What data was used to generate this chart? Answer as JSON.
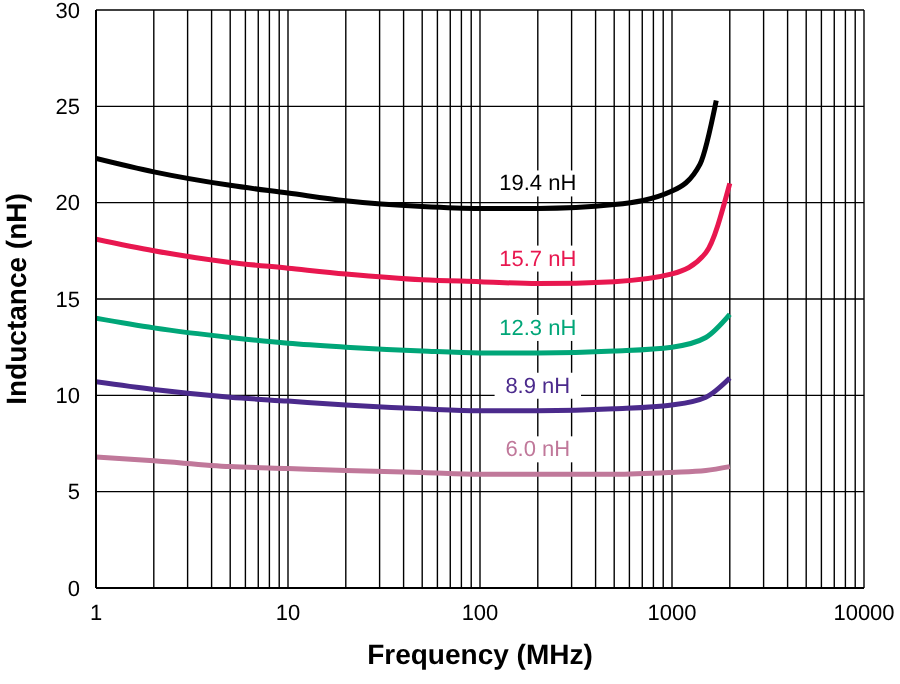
{
  "chart_data": {
    "type": "line",
    "xlabel": "Frequency (MHz)",
    "ylabel": "Inductance (nH)",
    "log": "x",
    "grid": true,
    "legend": false,
    "marker": "none",
    "line_style": "solid",
    "xlim": [
      1,
      10000
    ],
    "xticks": [
      1,
      {
        "value": 2,
        "label": null
      },
      {
        "value": 3,
        "label": null
      },
      {
        "value": 4,
        "label": null
      },
      {
        "value": 5,
        "label": null
      },
      {
        "value": 6,
        "label": null
      },
      {
        "value": 7,
        "label": null
      },
      {
        "value": 8,
        "label": null
      },
      {
        "value": 9,
        "label": null
      },
      10,
      {
        "value": 20,
        "label": null
      },
      {
        "value": 30,
        "label": null
      },
      {
        "value": 40,
        "label": null
      },
      {
        "value": 50,
        "label": null
      },
      {
        "value": 60,
        "label": null
      },
      {
        "value": 70,
        "label": null
      },
      {
        "value": 80,
        "label": null
      },
      {
        "value": 90,
        "label": null
      },
      100,
      {
        "value": 200,
        "label": null
      },
      {
        "value": 300,
        "label": null
      },
      {
        "value": 400,
        "label": null
      },
      {
        "value": 500,
        "label": null
      },
      {
        "value": 600,
        "label": null
      },
      {
        "value": 700,
        "label": null
      },
      {
        "value": 800,
        "label": null
      },
      {
        "value": 900,
        "label": null
      },
      1000,
      {
        "value": 2000,
        "label": null
      },
      {
        "value": 3000,
        "label": null
      },
      {
        "value": 4000,
        "label": null
      },
      {
        "value": 5000,
        "label": null
      },
      {
        "value": 6000,
        "label": null
      },
      {
        "value": 7000,
        "label": null
      },
      {
        "value": 8000,
        "label": null
      },
      {
        "value": 9000,
        "label": null
      },
      10000
    ],
    "ylim": [
      0,
      30
    ],
    "yticks": [
      0,
      5,
      10,
      15,
      20,
      25,
      30
    ],
    "series": [
      {
        "name": "19.4 nH",
        "color": "#000000",
        "x": [
          1,
          2,
          5,
          10,
          20,
          50,
          100,
          200,
          500,
          1000,
          1400,
          1700
        ],
        "values": [
          22.3,
          21.6,
          20.9,
          20.5,
          20.1,
          19.8,
          19.7,
          19.7,
          19.9,
          20.6,
          22,
          25.3
        ]
      },
      {
        "name": "15.7 nH",
        "color": "#e8174f",
        "x": [
          1,
          2,
          5,
          10,
          20,
          50,
          100,
          200,
          500,
          1000,
          1500,
          2000
        ],
        "values": [
          18.1,
          17.5,
          16.9,
          16.6,
          16.3,
          16.0,
          15.9,
          15.8,
          15.9,
          16.3,
          17.4,
          21.0
        ]
      },
      {
        "name": "12.3 nH",
        "color": "#00a678",
        "x": [
          1,
          2,
          5,
          10,
          20,
          50,
          100,
          200,
          500,
          1000,
          1500,
          2000
        ],
        "values": [
          14.0,
          13.5,
          13.0,
          12.7,
          12.5,
          12.3,
          12.2,
          12.2,
          12.3,
          12.5,
          13.0,
          14.2
        ]
      },
      {
        "name": "8.9 nH",
        "color": "#4b2a8c",
        "x": [
          1,
          2,
          5,
          10,
          20,
          50,
          100,
          200,
          500,
          1000,
          1500,
          2000
        ],
        "values": [
          10.7,
          10.3,
          9.9,
          9.7,
          9.5,
          9.3,
          9.2,
          9.2,
          9.3,
          9.5,
          9.9,
          10.9
        ]
      },
      {
        "name": "6.0 nH",
        "color": "#c0789a",
        "x": [
          1,
          2,
          5,
          10,
          20,
          50,
          100,
          200,
          500,
          1000,
          1500,
          2000
        ],
        "values": [
          6.8,
          6.6,
          6.3,
          6.2,
          6.1,
          6.0,
          5.9,
          5.9,
          5.9,
          6.0,
          6.1,
          6.3
        ]
      }
    ]
  }
}
